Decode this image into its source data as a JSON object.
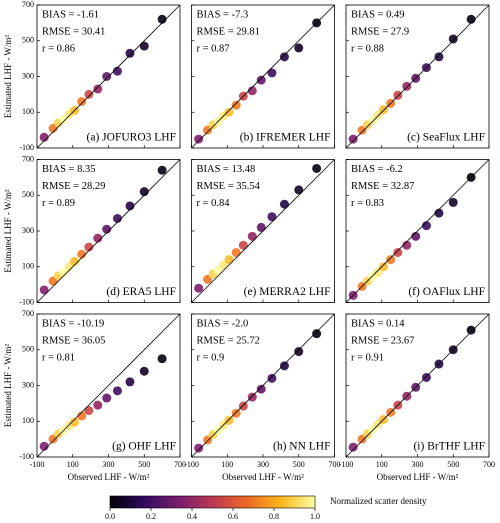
{
  "chart_data": [
    {
      "type": "scatter",
      "stats": [
        "BIAS = -1.61",
        "RMSE = 30.41",
        "r = 0.86"
      ],
      "label": "(a) JOFURO3 LHF",
      "xlim": [
        -100,
        700
      ],
      "ylim": [
        -100,
        700
      ],
      "xticks": [
        -100,
        100,
        300,
        500,
        700
      ],
      "yticks": [
        -100,
        100,
        300,
        500,
        700
      ],
      "ylabel": "Estimated LHF - W/m²",
      "x": [
        -60,
        -10,
        20,
        50,
        80,
        110,
        150,
        190,
        240,
        290,
        350,
        420,
        500,
        600
      ],
      "y": [
        -40,
        10,
        40,
        60,
        90,
        110,
        160,
        200,
        230,
        300,
        330,
        430,
        470,
        620
      ],
      "density": [
        0.35,
        0.7,
        0.9,
        1.0,
        0.95,
        0.85,
        0.7,
        0.55,
        0.4,
        0.28,
        0.2,
        0.12,
        0.06,
        0.02
      ]
    },
    {
      "type": "scatter",
      "stats": [
        "BIAS = -7.3",
        "RMSE = 29.81",
        "r = 0.87"
      ],
      "label": "(b) IFREMER LHF",
      "xlim": [
        -100,
        700
      ],
      "ylim": [
        -100,
        700
      ],
      "xticks": [
        -100,
        100,
        300,
        500,
        700
      ],
      "yticks": [
        -100,
        100,
        300,
        500,
        700
      ],
      "x": [
        -60,
        -10,
        20,
        50,
        80,
        110,
        150,
        190,
        240,
        290,
        350,
        420,
        500,
        600
      ],
      "y": [
        -50,
        0,
        30,
        50,
        80,
        100,
        140,
        190,
        220,
        280,
        320,
        410,
        460,
        600
      ],
      "density": [
        0.35,
        0.7,
        0.9,
        1.0,
        0.95,
        0.85,
        0.7,
        0.55,
        0.4,
        0.28,
        0.2,
        0.12,
        0.06,
        0.02
      ]
    },
    {
      "type": "scatter",
      "stats": [
        "BIAS = 0.49",
        "RMSE = 27.9",
        "r = 0.88"
      ],
      "label": "(c) SeaFlux LHF",
      "xlim": [
        -100,
        700
      ],
      "ylim": [
        -100,
        700
      ],
      "xticks": [
        -100,
        100,
        300,
        500,
        700
      ],
      "yticks": [
        -100,
        100,
        300,
        500,
        700
      ],
      "x": [
        -60,
        -10,
        20,
        50,
        80,
        110,
        150,
        190,
        240,
        290,
        350,
        420,
        500,
        600
      ],
      "y": [
        -50,
        0,
        30,
        55,
        85,
        115,
        150,
        195,
        245,
        290,
        350,
        410,
        510,
        620
      ],
      "density": [
        0.35,
        0.7,
        0.9,
        1.0,
        0.95,
        0.85,
        0.7,
        0.55,
        0.4,
        0.28,
        0.2,
        0.12,
        0.06,
        0.02
      ]
    },
    {
      "type": "scatter",
      "stats": [
        "BIAS = 8.35",
        "RMSE = 28.29",
        "r = 0.89"
      ],
      "label": "(d) ERA5 LHF",
      "xlim": [
        -100,
        700
      ],
      "ylim": [
        -100,
        700
      ],
      "xticks": [
        -100,
        100,
        300,
        500,
        700
      ],
      "yticks": [
        -100,
        100,
        300,
        500,
        700
      ],
      "ylabel": "Estimated LHF - W/m²",
      "x": [
        -60,
        -10,
        20,
        50,
        80,
        110,
        150,
        190,
        240,
        290,
        350,
        420,
        500,
        600
      ],
      "y": [
        -30,
        20,
        50,
        70,
        100,
        130,
        170,
        210,
        260,
        310,
        370,
        440,
        520,
        640
      ],
      "density": [
        0.35,
        0.7,
        0.9,
        1.0,
        0.95,
        0.85,
        0.7,
        0.55,
        0.4,
        0.28,
        0.2,
        0.12,
        0.06,
        0.02
      ]
    },
    {
      "type": "scatter",
      "stats": [
        "BIAS = 13.48",
        "RMSE = 35.54",
        "r = 0.84"
      ],
      "label": "(e) MERRA2 LHF",
      "xlim": [
        -100,
        700
      ],
      "ylim": [
        -100,
        700
      ],
      "xticks": [
        -100,
        100,
        300,
        500,
        700
      ],
      "yticks": [
        -100,
        100,
        300,
        500,
        700
      ],
      "x": [
        -60,
        -10,
        20,
        50,
        80,
        110,
        150,
        190,
        240,
        290,
        350,
        420,
        500,
        600
      ],
      "y": [
        -20,
        30,
        60,
        80,
        110,
        140,
        180,
        220,
        270,
        320,
        380,
        450,
        530,
        650
      ],
      "density": [
        0.35,
        0.7,
        0.9,
        1.0,
        0.95,
        0.85,
        0.7,
        0.55,
        0.4,
        0.28,
        0.2,
        0.12,
        0.06,
        0.02
      ]
    },
    {
      "type": "scatter",
      "stats": [
        "BIAS = -6.2",
        "RMSE = 32.87",
        "r = 0.83"
      ],
      "label": "(f) OAFlux LHF",
      "xlim": [
        -100,
        700
      ],
      "ylim": [
        -100,
        700
      ],
      "xticks": [
        -100,
        100,
        300,
        500,
        700
      ],
      "yticks": [
        -100,
        100,
        300,
        500,
        700
      ],
      "x": [
        -60,
        -10,
        20,
        50,
        80,
        110,
        150,
        190,
        240,
        290,
        350,
        420,
        500,
        600
      ],
      "y": [
        -60,
        -10,
        20,
        45,
        70,
        100,
        140,
        180,
        220,
        270,
        330,
        400,
        460,
        600
      ],
      "density": [
        0.35,
        0.7,
        0.9,
        1.0,
        0.95,
        0.85,
        0.7,
        0.55,
        0.4,
        0.28,
        0.2,
        0.12,
        0.06,
        0.02
      ]
    },
    {
      "type": "scatter",
      "stats": [
        "BIAS = -10.19",
        "RMSE = 36.05",
        "r = 0.81"
      ],
      "label": "(g) OHF LHF",
      "xlim": [
        -100,
        700
      ],
      "ylim": [
        -100,
        700
      ],
      "xticks": [
        -100,
        100,
        300,
        500,
        700
      ],
      "yticks": [
        -100,
        100,
        300,
        500,
        700
      ],
      "ylabel": "Estimated LHF - W/m²",
      "xlabel": "Observed LHF - W/m²",
      "x": [
        -60,
        -10,
        20,
        50,
        80,
        110,
        150,
        190,
        240,
        290,
        350,
        420,
        500,
        600
      ],
      "y": [
        -40,
        0,
        30,
        50,
        75,
        95,
        130,
        160,
        190,
        230,
        270,
        320,
        380,
        450
      ],
      "density": [
        0.35,
        0.7,
        0.9,
        1.0,
        0.95,
        0.85,
        0.7,
        0.55,
        0.4,
        0.28,
        0.2,
        0.12,
        0.06,
        0.02
      ]
    },
    {
      "type": "scatter",
      "stats": [
        "BIAS = -2.0",
        "RMSE = 25.72",
        "r = 0.9"
      ],
      "label": "(h) NN LHF",
      "xlim": [
        -100,
        700
      ],
      "ylim": [
        -100,
        700
      ],
      "xticks": [
        -100,
        100,
        300,
        500,
        700
      ],
      "yticks": [
        -100,
        100,
        300,
        500,
        700
      ],
      "xlabel": "Observed LHF - W/m²",
      "x": [
        -60,
        -10,
        20,
        50,
        80,
        110,
        150,
        190,
        240,
        290,
        350,
        420,
        500,
        600
      ],
      "y": [
        -50,
        -5,
        25,
        50,
        80,
        105,
        145,
        185,
        235,
        280,
        340,
        410,
        490,
        590
      ],
      "density": [
        0.35,
        0.7,
        0.9,
        1.0,
        0.95,
        0.85,
        0.7,
        0.55,
        0.4,
        0.28,
        0.2,
        0.12,
        0.06,
        0.02
      ]
    },
    {
      "type": "scatter",
      "stats": [
        "BIAS = 0.14",
        "RMSE = 23.67",
        "r = 0.91"
      ],
      "label": "(i) BrTHF LHF",
      "xlim": [
        -100,
        700
      ],
      "ylim": [
        -100,
        700
      ],
      "xticks": [
        -100,
        100,
        300,
        500,
        700
      ],
      "yticks": [
        -100,
        100,
        300,
        500,
        700
      ],
      "xlabel": "Observed LHF - W/m²",
      "x": [
        -60,
        -10,
        20,
        50,
        80,
        110,
        150,
        190,
        240,
        290,
        350,
        420,
        500,
        600
      ],
      "y": [
        -45,
        0,
        30,
        55,
        85,
        110,
        150,
        190,
        240,
        290,
        345,
        420,
        500,
        610
      ],
      "density": [
        0.35,
        0.7,
        0.9,
        1.0,
        0.95,
        0.85,
        0.7,
        0.55,
        0.4,
        0.28,
        0.2,
        0.12,
        0.06,
        0.02
      ]
    },
    {
      "type": "colorbar",
      "label": "Normalized scatter density",
      "lim": [
        0,
        1
      ],
      "ticks": [
        {
          "value": 0,
          "label": "0.0"
        },
        0.2,
        0.4,
        0.6,
        0.8,
        {
          "value": 1,
          "label": "1.0"
        }
      ],
      "colors": [
        "#000004",
        "#320a5e",
        "#781c6d",
        "#bc3754",
        "#ed6925",
        "#fbb61a",
        "#fcffa4"
      ]
    }
  ]
}
